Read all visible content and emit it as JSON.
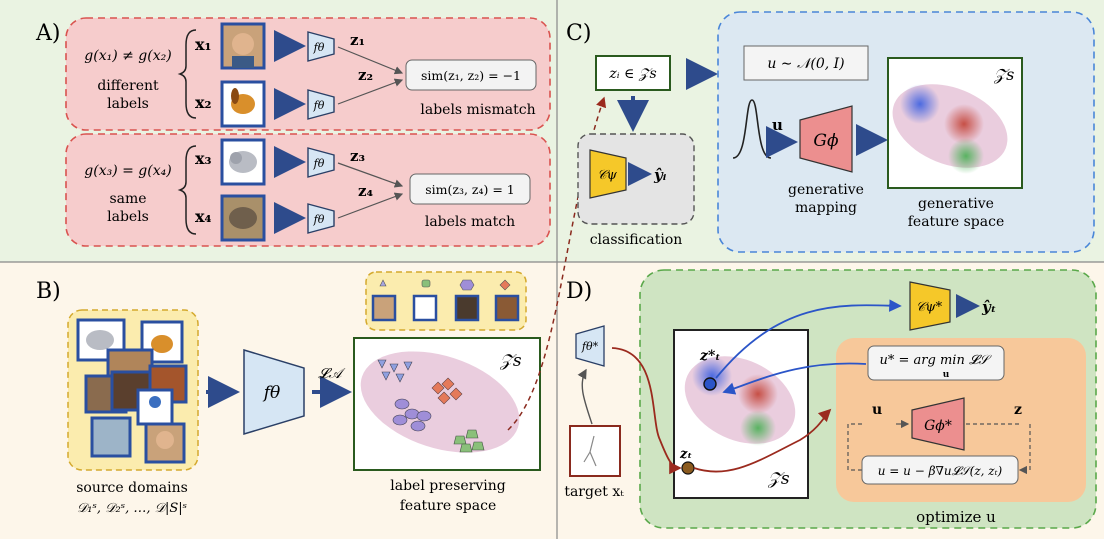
{
  "panels": {
    "A": {
      "label": "A)",
      "pair1": {
        "condition": "g(x₁) ≠ g(x₂)",
        "caption_line1": "different",
        "caption_line2": "labels",
        "x_top": "x₁",
        "x_bottom": "x₂",
        "encoder": "fθ",
        "z_top": "z₁",
        "z_bottom": "z₂",
        "similarity": "sim(z₁, z₂) = −1",
        "result": "labels mismatch"
      },
      "pair2": {
        "condition": "g(x₃) = g(x₄)",
        "caption_line1": "same",
        "caption_line2": "labels",
        "x_top": "x₃",
        "x_bottom": "x₄",
        "encoder": "fθ",
        "z_top": "z₃",
        "z_bottom": "z₄",
        "similarity": "sim(z₃, z₄) = 1",
        "result": "labels match"
      }
    },
    "B": {
      "label": "B)",
      "encoder": "fθ",
      "loss": "𝓛𝒜",
      "space_symbol": "𝒵s",
      "source_line1": "source domains",
      "source_line2": "𝒟₁ˢ, 𝒟₂ˢ, …, 𝒟|S|ˢ",
      "space_line1": "label preserving",
      "space_line2": "feature space"
    },
    "C": {
      "label": "C)",
      "latent": "zᵢ ∈ 𝒵s",
      "classifier": "𝒞ψ",
      "prediction": "ŷᵢ",
      "classification_caption": "classification",
      "noise": "u ∼ 𝒩(0, I)",
      "u": "u",
      "generator": "Gϕ",
      "gen_caption_line1": "generative",
      "gen_caption_line2": "mapping",
      "space_symbol": "𝒵s",
      "space_caption_line1": "generative",
      "space_caption_line2": "feature space"
    },
    "D": {
      "label": "D)",
      "encoder": "fθ*",
      "target_caption": "target xₜ",
      "z_star": "z*ₜ",
      "z_t": "zₜ",
      "space_symbol": "𝒵s",
      "classifier": "𝒞ψ*",
      "prediction": "ŷₜ",
      "argmin": "u* = arg min 𝓛𝒮",
      "argmin_sub": "u",
      "u": "u",
      "z": "z",
      "generator": "Gϕ*",
      "update": "u = u − β∇u𝓛𝒮(z, zₜ)",
      "optimize": "optimize u"
    }
  },
  "colors": {
    "panel_bg": "#eaf3e2",
    "panel_B_bg": "#fdf6ea",
    "panel_A_box": "#f6cccc",
    "panel_A_border": "#d9534f",
    "panel_C_box": "#dce8f2",
    "panel_C_border": "#4a86d8",
    "panel_D_box": "#cfe4c2",
    "panel_D_border": "#5aa84a",
    "encoder_fill": "#d6e6f4",
    "classifier_fill": "#f5c829",
    "generator_fill": "#ec8f8f",
    "arrow": "#2e4b8c",
    "optimize_fill": "#f7c89a"
  }
}
